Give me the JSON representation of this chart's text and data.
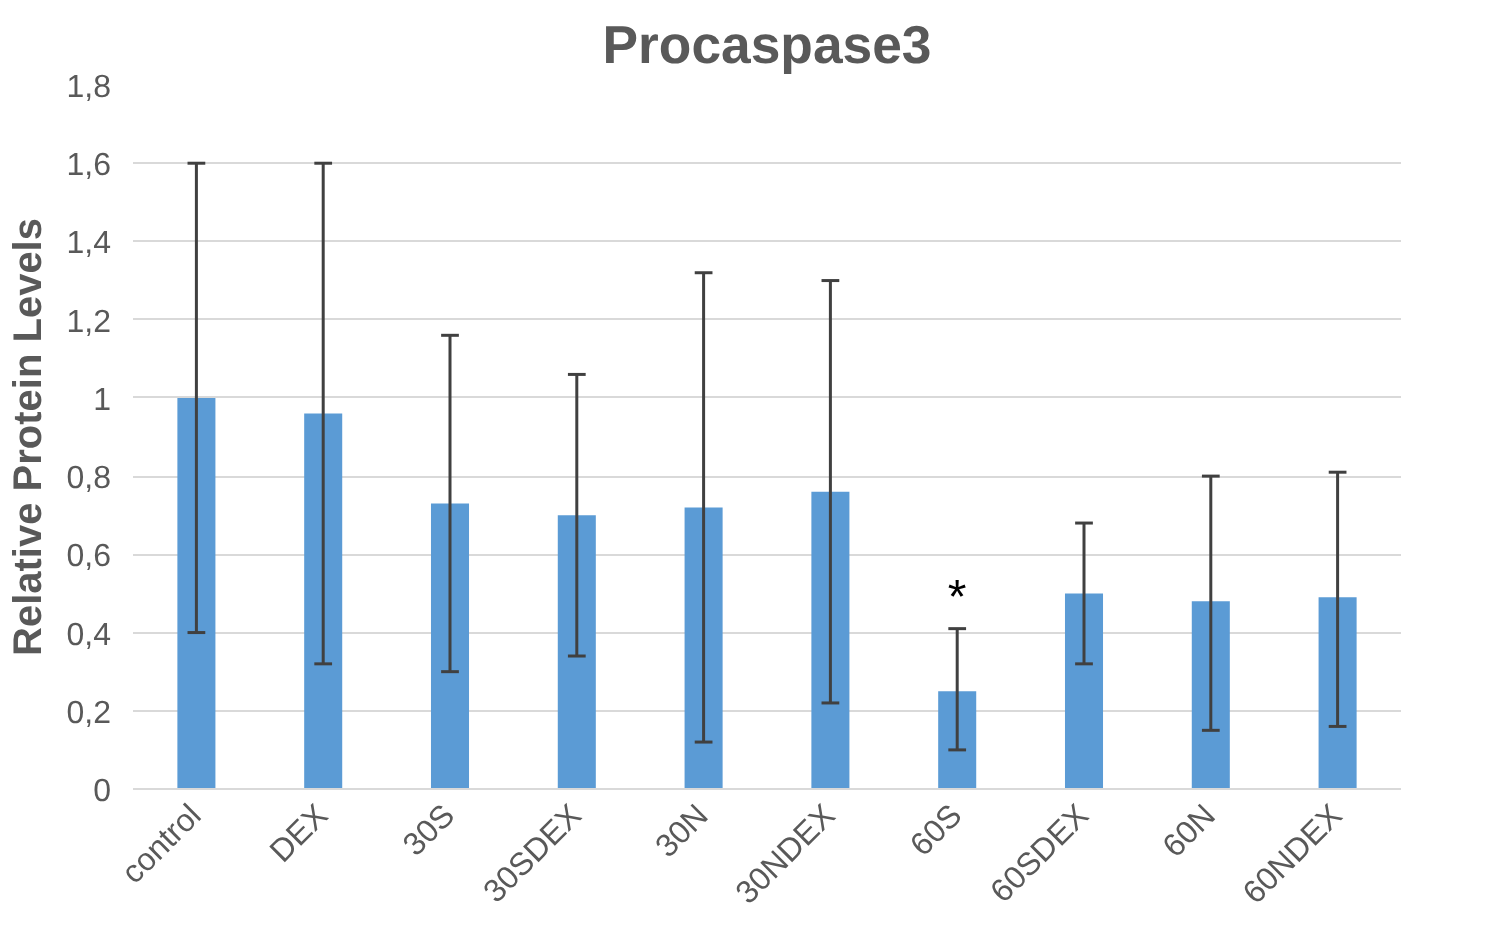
{
  "chart_data": {
    "type": "bar",
    "title": "Procaspase3",
    "ylabel": "Relative Protein Levels",
    "categories": [
      "control",
      "DEX",
      "30S",
      "30SDEX",
      "30N",
      "30NDEX",
      "60S",
      "60SDEX",
      "60N",
      "60NDEX"
    ],
    "values": [
      1.0,
      0.96,
      0.73,
      0.7,
      0.72,
      0.76,
      0.25,
      0.5,
      0.48,
      0.49
    ],
    "errors": [
      [
        0.4,
        1.6
      ],
      [
        0.32,
        1.6
      ],
      [
        0.3,
        1.16
      ],
      [
        0.34,
        1.06
      ],
      [
        0.12,
        1.32
      ],
      [
        0.22,
        1.3
      ],
      [
        0.1,
        0.41
      ],
      [
        0.32,
        0.68
      ],
      [
        0.15,
        0.8
      ],
      [
        0.16,
        0.81
      ]
    ],
    "color": "#5b9bd5",
    "ylim": [
      0,
      1.8
    ],
    "yticks": [
      0,
      {
        "value": 0.2,
        "label": "0,2"
      },
      {
        "value": 0.4,
        "label": "0,4"
      },
      {
        "value": 0.6,
        "label": "0,6"
      },
      {
        "value": 0.8,
        "label": "0,8"
      },
      1,
      {
        "value": 1.2,
        "label": "1,2"
      },
      {
        "value": 1.4,
        "label": "1,4"
      },
      {
        "value": 1.6,
        "label": "1,6"
      },
      {
        "value": 1.8,
        "label": "1,8"
      }
    ],
    "grid": "y",
    "annotations": [
      {
        "text": "*",
        "x": "60S",
        "y": 0.42
      }
    ]
  }
}
